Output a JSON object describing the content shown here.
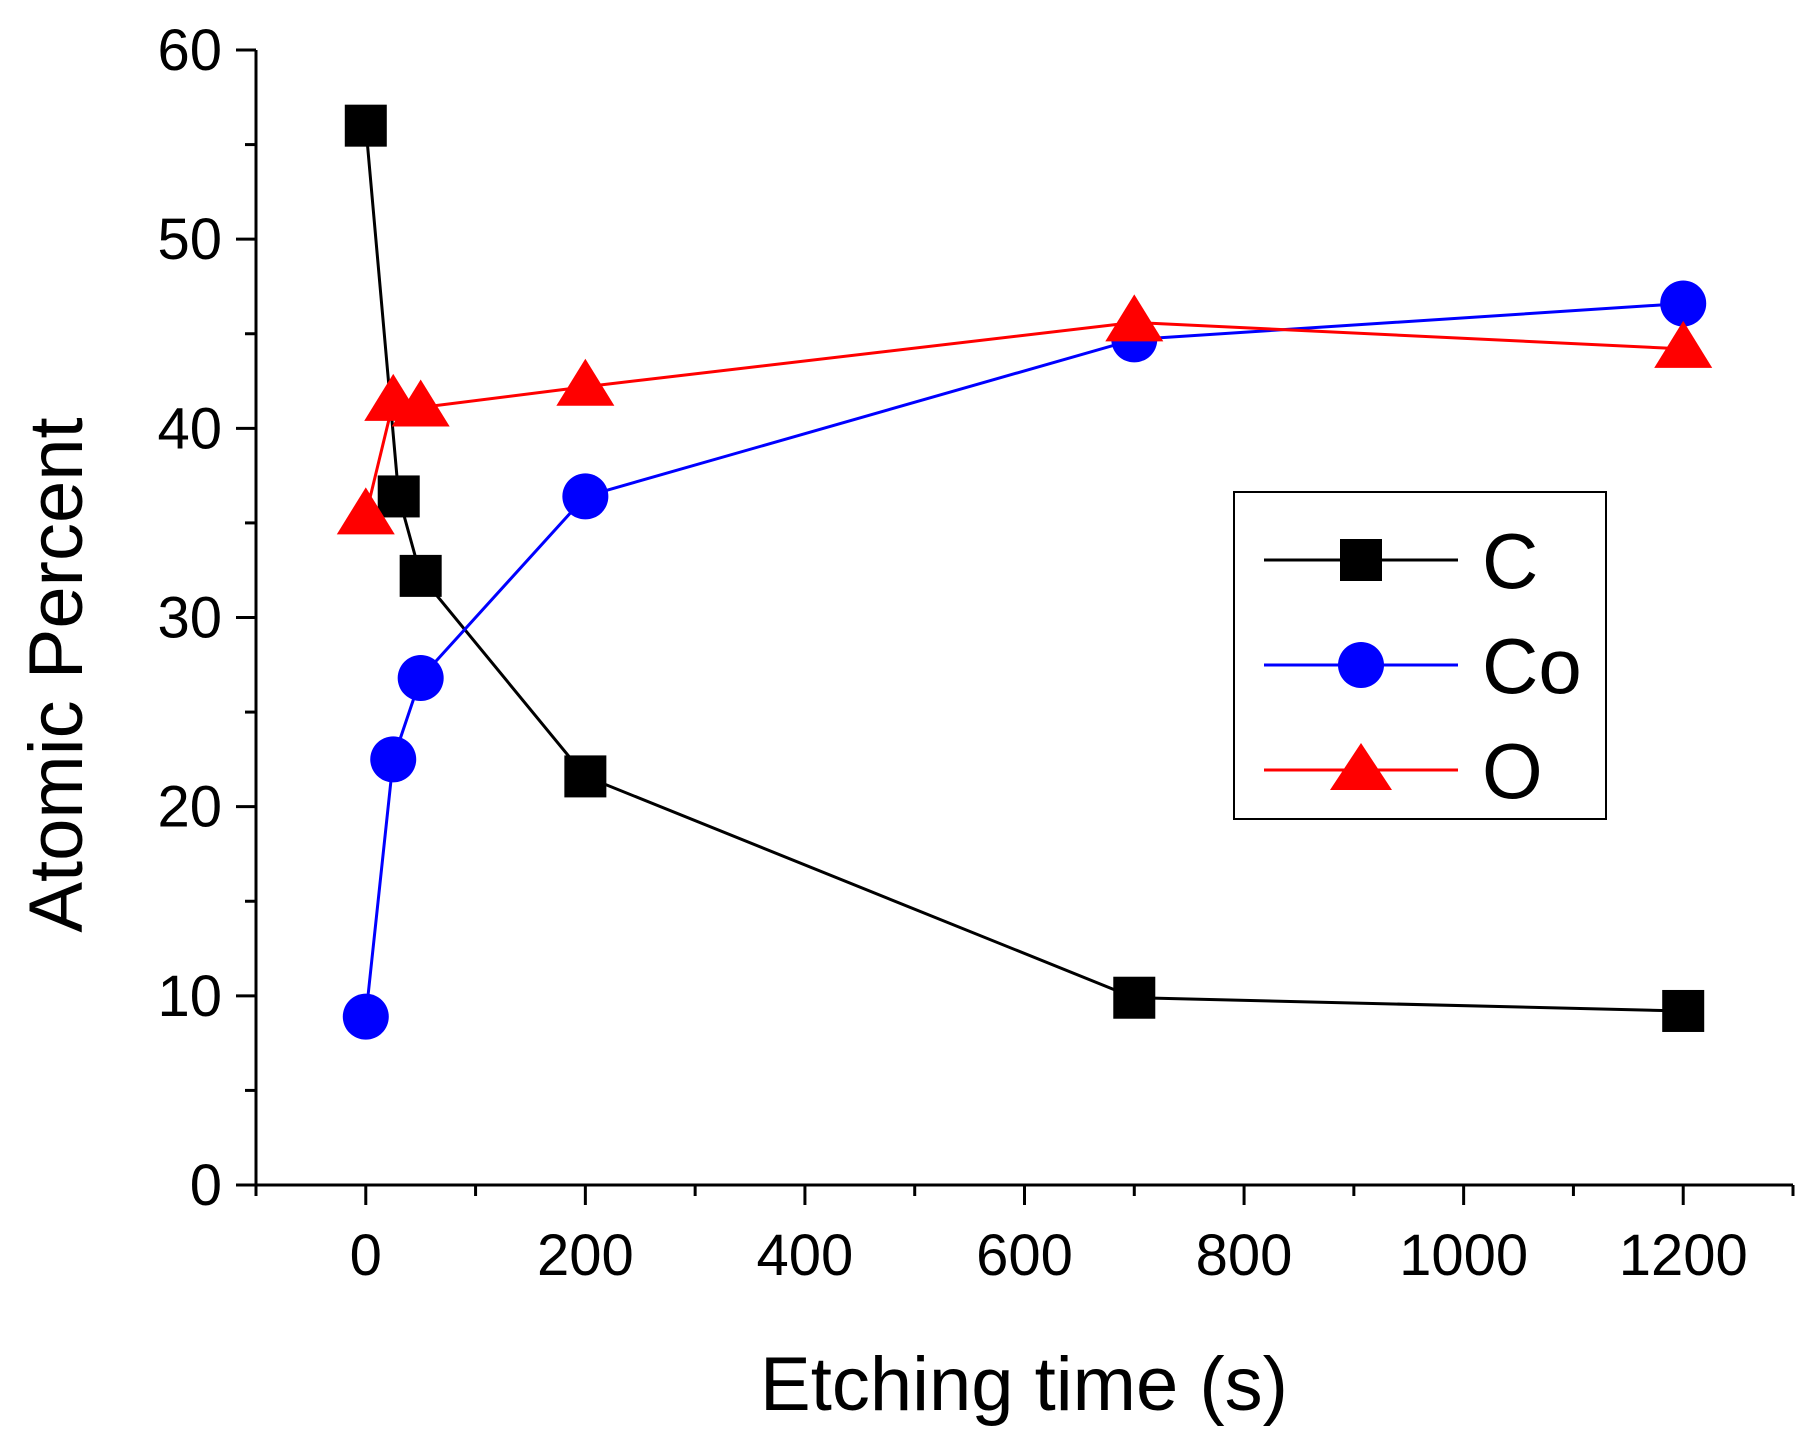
{
  "chart_data": {
    "type": "line",
    "title": "",
    "xlabel": "Etching time (s)",
    "ylabel": "Atomic Percent",
    "xlim": [
      -100,
      1300
    ],
    "ylim": [
      0,
      60
    ],
    "xticks": [
      0,
      200,
      400,
      600,
      800,
      1000,
      1200
    ],
    "yticks": [
      0,
      10,
      20,
      30,
      40,
      50,
      60
    ],
    "grid": false,
    "legend_position": "right",
    "series": [
      {
        "name": "C",
        "color": "#000000",
        "marker": "square",
        "points": [
          [
            0,
            56.0
          ],
          [
            30,
            36.4
          ],
          [
            50,
            32.2
          ],
          [
            200,
            21.6
          ],
          [
            700,
            9.9
          ],
          [
            1200,
            9.2
          ]
        ]
      },
      {
        "name": "Co",
        "color": "#0000ff",
        "marker": "circle",
        "points": [
          [
            0,
            8.9
          ],
          [
            25,
            22.5
          ],
          [
            50,
            26.8
          ],
          [
            200,
            36.4
          ],
          [
            700,
            44.7
          ],
          [
            1200,
            46.6
          ]
        ]
      },
      {
        "name": "O",
        "color": "#ff0000",
        "marker": "triangle",
        "points": [
          [
            0,
            35.4
          ],
          [
            25,
            41.4
          ],
          [
            50,
            41.1
          ],
          [
            200,
            42.2
          ],
          [
            700,
            45.6
          ],
          [
            1200,
            44.2
          ]
        ]
      }
    ]
  }
}
